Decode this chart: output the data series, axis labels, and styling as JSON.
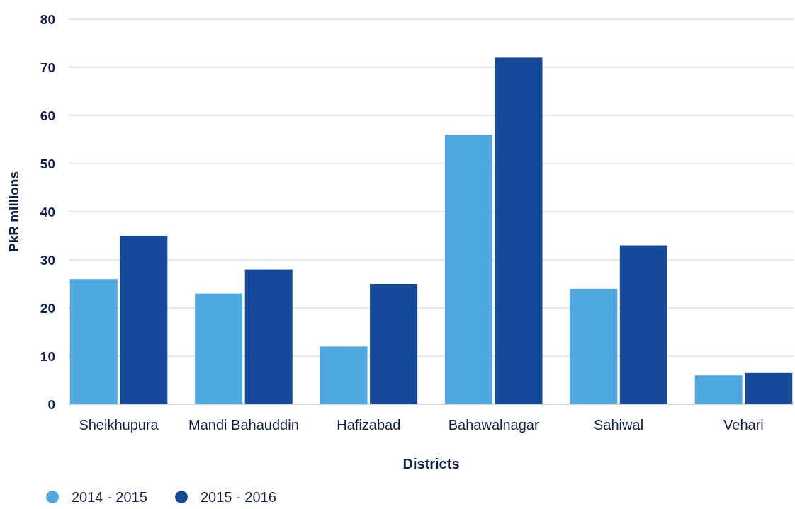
{
  "chart_data": {
    "type": "bar",
    "xlabel": "Districts",
    "ylabel": "PkR millions",
    "categories": [
      "Sheikhupura",
      "Mandi Bahauddin",
      "Hafizabad",
      "Bahawalnagar",
      "Sahiwal",
      "Vehari"
    ],
    "series": [
      {
        "name": "2014 - 2015",
        "color": "#4fa8df",
        "values": [
          26,
          23,
          12,
          56,
          24,
          6
        ]
      },
      {
        "name": "2015 - 2016",
        "color": "#154a9a",
        "values": [
          35,
          28,
          25,
          72,
          33,
          6.5
        ]
      }
    ],
    "ylim": [
      0,
      80
    ],
    "yticks": [
      0,
      10,
      20,
      30,
      40,
      50,
      60,
      70,
      80
    ],
    "grid": "y",
    "legend": "bottom left"
  }
}
